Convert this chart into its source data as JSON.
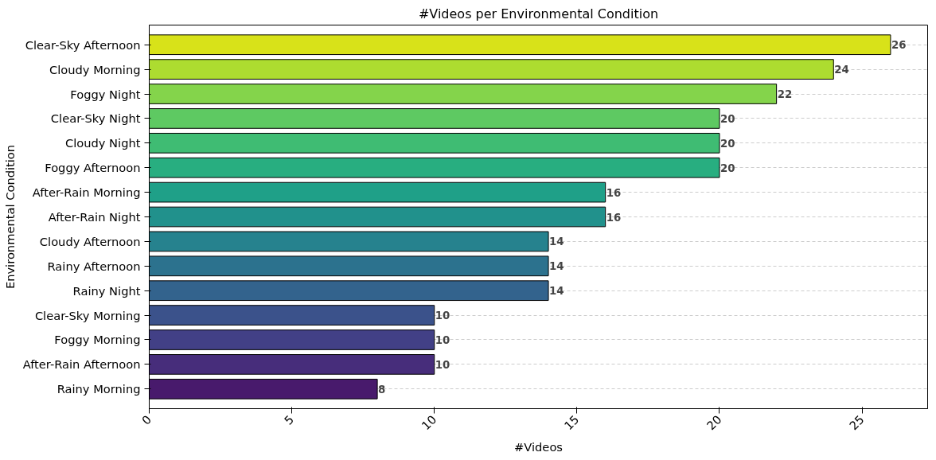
{
  "chart_data": {
    "type": "bar",
    "orientation": "horizontal",
    "title": "#Videos per Environmental Condition",
    "xlabel": "#Videos",
    "ylabel": "Environmental Condition",
    "categories": [
      "Clear-Sky Afternoon",
      "Cloudy Morning",
      "Foggy Night",
      "Clear-Sky Night",
      "Cloudy Night",
      "Foggy Afternoon",
      "After-Rain Morning",
      "After-Rain Night",
      "Cloudy Afternoon",
      "Rainy Afternoon",
      "Rainy Night",
      "Clear-Sky Morning",
      "Foggy Morning",
      "After-Rain Afternoon",
      "Rainy Morning"
    ],
    "values": [
      26,
      24,
      22,
      20,
      20,
      20,
      16,
      16,
      14,
      14,
      14,
      10,
      10,
      10,
      8
    ],
    "colors": [
      "#d8e219",
      "#addc30",
      "#84d44b",
      "#5ec962",
      "#3fbc73",
      "#28ae80",
      "#1fa088",
      "#21918c",
      "#26828e",
      "#2c728e",
      "#33638d",
      "#3b528b",
      "#424086",
      "#472d7b",
      "#481a6c"
    ],
    "xlim": [
      0,
      27.3
    ],
    "xticks": [
      0,
      5,
      10,
      15,
      20,
      25
    ],
    "grid": "y",
    "data_labels": true
  }
}
